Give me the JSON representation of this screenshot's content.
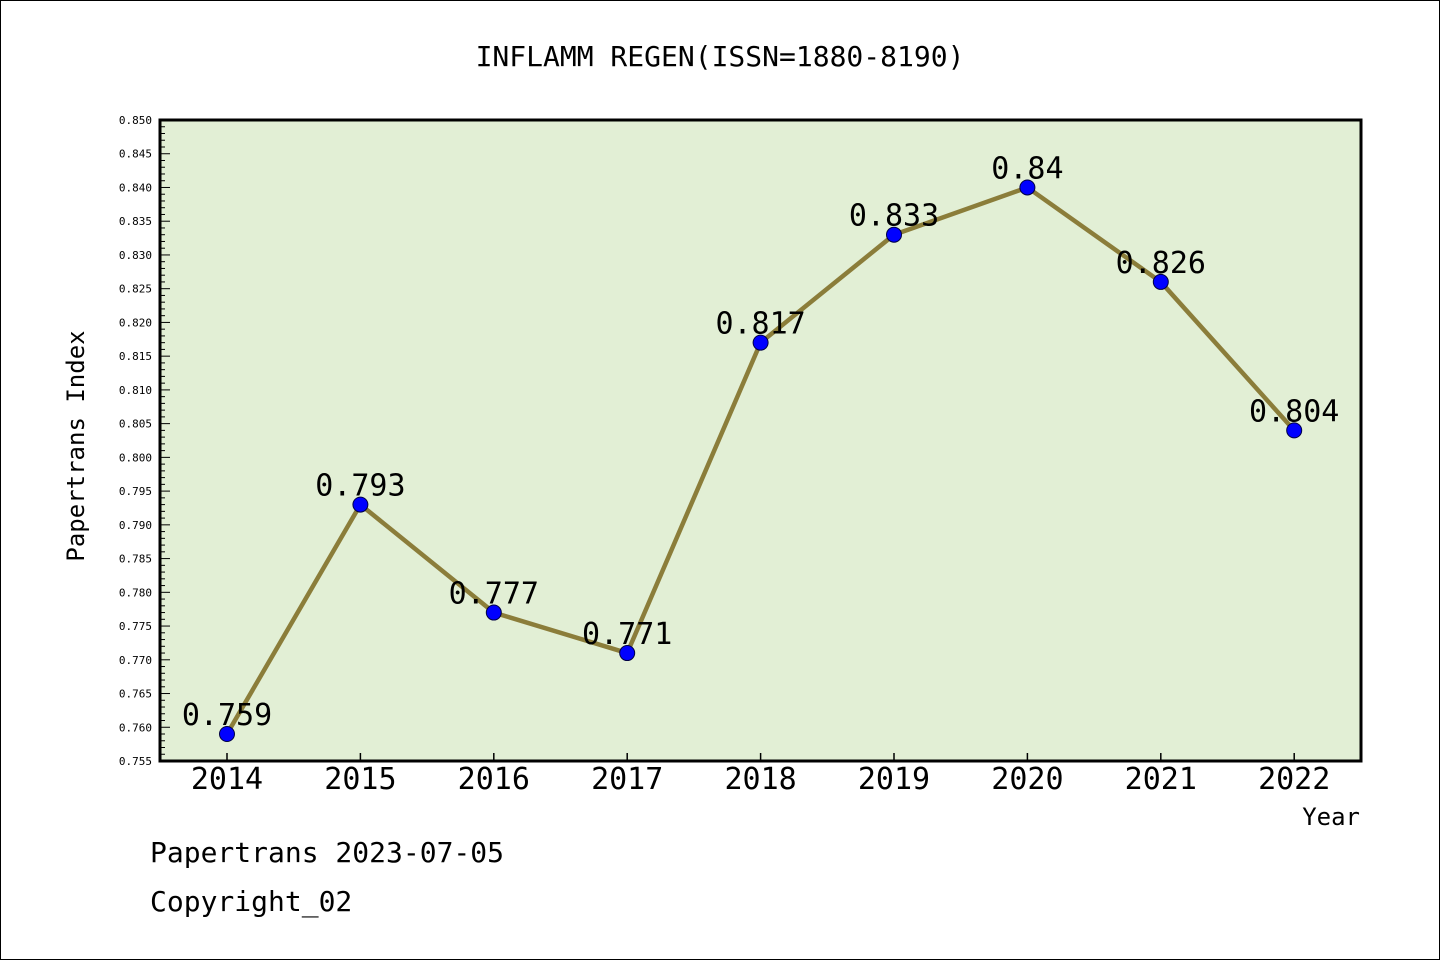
{
  "chart_data": {
    "type": "line",
    "title": "INFLAMM REGEN(ISSN=1880-8190)",
    "xlabel": "Year",
    "ylabel": "Papertrans Index",
    "categories": [
      "2014",
      "2015",
      "2016",
      "2017",
      "2018",
      "2019",
      "2020",
      "2021",
      "2022"
    ],
    "values": [
      0.759,
      0.793,
      0.777,
      0.771,
      0.817,
      0.833,
      0.84,
      0.826,
      0.804
    ],
    "data_labels": [
      "0.759",
      "0.793",
      "0.777",
      "0.771",
      "0.817",
      "0.833",
      "0.84",
      "0.826",
      "0.804"
    ],
    "ylim": [
      0.755,
      0.85
    ],
    "y_ticks": [
      "0.755",
      "0.760",
      "0.765",
      "0.770",
      "0.775",
      "0.780",
      "0.785",
      "0.790",
      "0.795",
      "0.800",
      "0.805",
      "0.810",
      "0.815",
      "0.820",
      "0.825",
      "0.830",
      "0.835",
      "0.840",
      "0.845",
      "0.850"
    ],
    "grid": false,
    "colors": {
      "plot_background": "#e2efd5",
      "line": "#8b7d3a",
      "marker": "#0000ff"
    }
  },
  "footer": {
    "line1": "Papertrans 2023-07-05",
    "line2": "Copyright_02"
  }
}
